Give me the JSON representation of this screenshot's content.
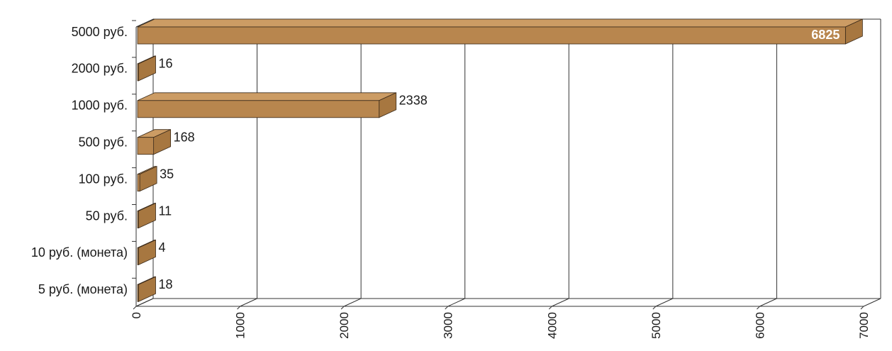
{
  "chart_data": {
    "type": "bar",
    "orientation": "horizontal",
    "style": "3d",
    "title": "",
    "xlabel": "",
    "ylabel": "",
    "categories": [
      "5000 руб.",
      "2000 руб.",
      "1000 руб.",
      "500 руб.",
      "100 руб.",
      "50 руб.",
      "10 руб. (монета)",
      "5 руб. (монета)"
    ],
    "values": [
      6825,
      16,
      2338,
      168,
      35,
      11,
      4,
      18
    ],
    "value_labels": [
      "6825",
      "16",
      "2338",
      "168",
      "35",
      "11",
      "4",
      "18"
    ],
    "xlim": [
      0,
      7000
    ],
    "xticks": [
      0,
      1000,
      2000,
      3000,
      4000,
      5000,
      6000,
      7000
    ],
    "xtick_labels": [
      "0",
      "1000",
      "2000",
      "3000",
      "4000",
      "5000",
      "6000",
      "7000"
    ],
    "grid": true,
    "legend": "none",
    "colors": {
      "bar_front": "#b8864e",
      "bar_top": "#cc9c64",
      "bar_side": "#a77740",
      "bar_edge": "#3a2a1a",
      "grid": "#333333"
    }
  }
}
